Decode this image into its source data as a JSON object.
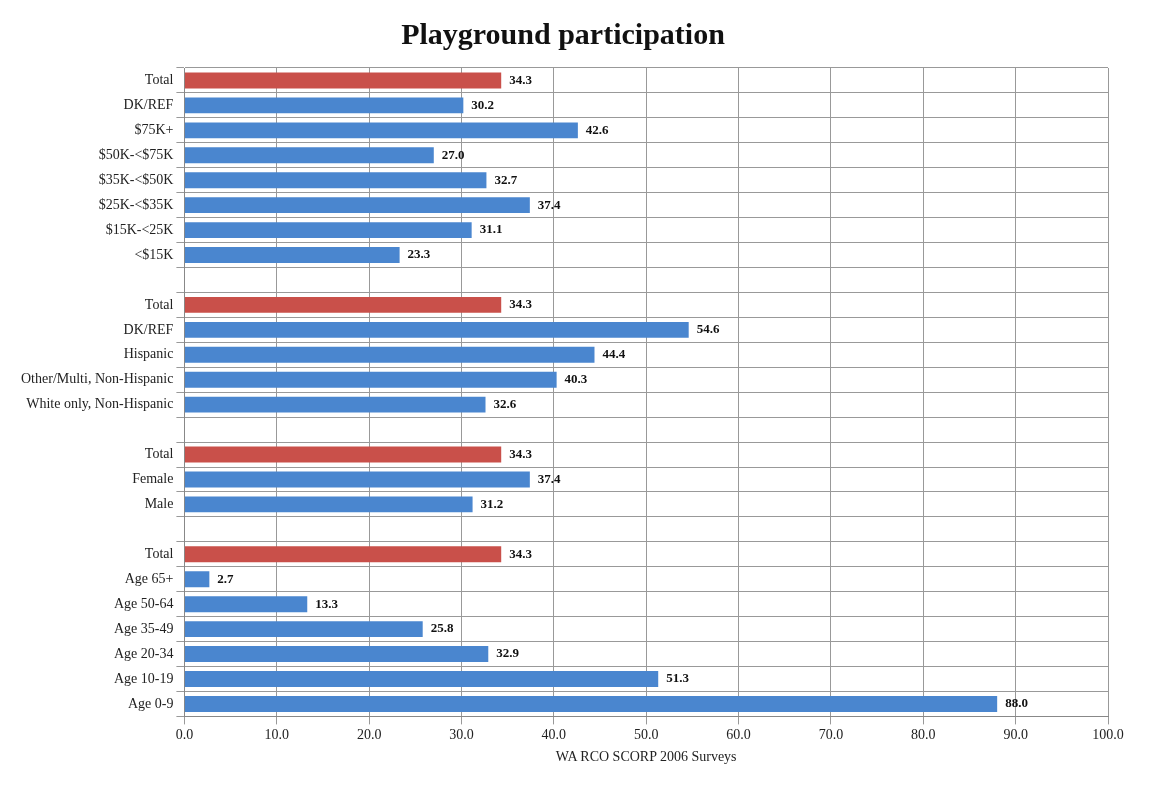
{
  "chart_data": {
    "type": "bar",
    "orientation": "horizontal",
    "title": "Playground participation",
    "xlabel": "WA RCO SCORP 2006 Surveys",
    "categories": [
      "Total",
      "DK/REF",
      "$75K+",
      "$50K-<$75K",
      "$35K-<$50K",
      "$25K-<$35K",
      "$15K-<25K",
      "<$15K",
      null,
      "Total",
      "DK/REF",
      "Hispanic",
      "Other/Multi, Non-Hispanic",
      "White only, Non-Hispanic",
      null,
      "Total",
      "Female",
      "Male",
      null,
      "Total",
      "Age 65+",
      "Age 50-64",
      "Age 35-49",
      "Age 20-34",
      "Age 10-19",
      "Age 0-9"
    ],
    "values": [
      34.3,
      30.2,
      42.6,
      27.0,
      32.7,
      37.4,
      31.1,
      23.3,
      null,
      34.3,
      54.6,
      44.4,
      40.3,
      32.6,
      null,
      34.3,
      37.4,
      31.2,
      null,
      34.3,
      2.7,
      13.3,
      25.8,
      32.9,
      51.3,
      88.0
    ],
    "value_labels": [
      "34.3",
      "30.2",
      "42.6",
      "27.0",
      "32.7",
      "37.4",
      "31.1",
      "23.3",
      null,
      "34.3",
      "54.6",
      "44.4",
      "40.3",
      "32.6",
      null,
      "34.3",
      "37.4",
      "31.2",
      null,
      "34.3",
      "2.7",
      "13.3",
      "25.8",
      "32.9",
      "51.3",
      "88.0"
    ],
    "colors": [
      "#c9504a",
      "#4a86cf",
      "#4a86cf",
      "#4a86cf",
      "#4a86cf",
      "#4a86cf",
      "#4a86cf",
      "#4a86cf",
      "#4a86cf",
      "#c9504a",
      "#4a86cf",
      "#4a86cf",
      "#4a86cf",
      "#4a86cf",
      "#4a86cf",
      "#c9504a",
      "#4a86cf",
      "#4a86cf",
      "#4a86cf",
      "#c9504a",
      "#4a86cf",
      "#4a86cf",
      "#4a86cf",
      "#4a86cf",
      "#4a86cf",
      "#4a86cf"
    ],
    "xlim": [
      0,
      100
    ],
    "xticks": [
      {
        "value": 0,
        "label": "0.0"
      },
      {
        "value": 10,
        "label": "10.0"
      },
      {
        "value": 20,
        "label": "20.0"
      },
      {
        "value": 30,
        "label": "30.0"
      },
      {
        "value": 40,
        "label": "40.0"
      },
      {
        "value": 50,
        "label": "50.0"
      },
      {
        "value": 60,
        "label": "60.0"
      },
      {
        "value": 70,
        "label": "70.0"
      },
      {
        "value": 80,
        "label": "80.0"
      },
      {
        "value": 90,
        "label": "90.0"
      },
      {
        "value": 100,
        "label": "100.0"
      }
    ],
    "grid": true,
    "legend": false
  }
}
